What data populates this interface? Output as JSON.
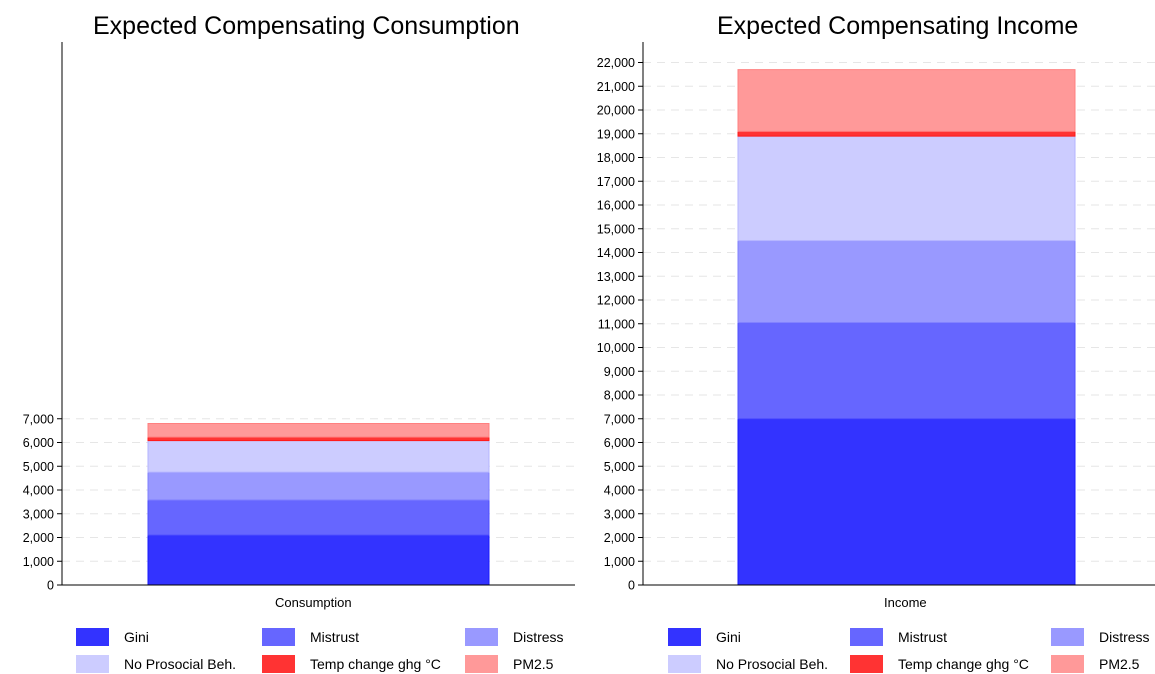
{
  "chart_data": [
    {
      "type": "bar",
      "stacked": true,
      "title": "Expected Compensating Consumption",
      "categories": [
        "Consumption"
      ],
      "ylim": [
        0,
        22000
      ],
      "yticks": [
        0,
        1000,
        2000,
        3000,
        4000,
        5000,
        6000,
        7000
      ],
      "ytick_labels": [
        "0",
        "1,000",
        "2,000",
        "3,000",
        "4,000",
        "5,000",
        "6,000",
        "7,000"
      ],
      "grid": true,
      "series": [
        {
          "name": "Gini",
          "values": [
            2100
          ],
          "color": "#3333ff"
        },
        {
          "name": "Mistrust",
          "values": [
            1480
          ],
          "color": "#6666ff"
        },
        {
          "name": "Distress",
          "values": [
            1170
          ],
          "color": "#9999ff"
        },
        {
          "name": "No Prosocial Beh.",
          "values": [
            1330
          ],
          "color": "#ccccff"
        },
        {
          "name": "Temp change ghg °C",
          "values": [
            150
          ],
          "color": "#ff3333"
        },
        {
          "name": "PM2.5",
          "values": [
            570
          ],
          "color": "#ff9999"
        }
      ]
    },
    {
      "type": "bar",
      "stacked": true,
      "title": "Expected Compensating Income",
      "categories": [
        "Income"
      ],
      "ylim": [
        0,
        22000
      ],
      "yticks": [
        0,
        1000,
        2000,
        3000,
        4000,
        5000,
        6000,
        7000,
        8000,
        9000,
        10000,
        11000,
        12000,
        13000,
        14000,
        15000,
        16000,
        17000,
        18000,
        19000,
        20000,
        21000,
        22000
      ],
      "ytick_labels": [
        "0",
        "1,000",
        "2,000",
        "3,000",
        "4,000",
        "5,000",
        "6,000",
        "7,000",
        "8,000",
        "9,000",
        "10,000",
        "11,000",
        "12,000",
        "13,000",
        "14,000",
        "15,000",
        "16,000",
        "17,000",
        "18,000",
        "19,000",
        "20,000",
        "21,000",
        "22,000"
      ],
      "grid": true,
      "series": [
        {
          "name": "Gini",
          "values": [
            7000
          ],
          "color": "#3333ff"
        },
        {
          "name": "Mistrust",
          "values": [
            4050
          ],
          "color": "#6666ff"
        },
        {
          "name": "Distress",
          "values": [
            3450
          ],
          "color": "#9999ff"
        },
        {
          "name": "No Prosocial Beh.",
          "values": [
            4400
          ],
          "color": "#ccccff"
        },
        {
          "name": "Temp change ghg °C",
          "values": [
            200
          ],
          "color": "#ff3333"
        },
        {
          "name": "PM2.5",
          "values": [
            2600
          ],
          "color": "#ff9999"
        }
      ]
    }
  ]
}
